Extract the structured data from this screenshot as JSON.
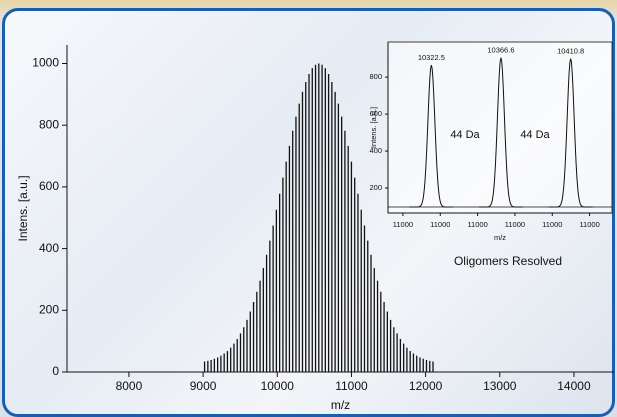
{
  "chart_data": [
    {
      "type": "stem",
      "x_label": "m/z",
      "y_label": "Intens. [a.u.]",
      "color": "#111111",
      "x": [
        9020,
        9064,
        9108,
        9152,
        9196,
        9240,
        9284,
        9328,
        9372,
        9416,
        9460,
        9504,
        9548,
        9592,
        9636,
        9680,
        9724,
        9768,
        9812,
        9856,
        9900,
        9944,
        9988,
        10032,
        10076,
        10120,
        10164,
        10208,
        10252,
        10296,
        10340,
        10384,
        10428,
        10472,
        10516,
        10560,
        10604,
        10648,
        10692,
        10736,
        10780,
        10824,
        10868,
        10912,
        10956,
        11000,
        11044,
        11088,
        11132,
        11176,
        11220,
        11264,
        11308,
        11352,
        11396,
        11440,
        11484,
        11528,
        11572,
        11616,
        11660,
        11704,
        11748,
        11792,
        11836,
        11880,
        11924,
        11968,
        12012,
        12056,
        12100
      ],
      "values": [
        34,
        36,
        39,
        43,
        47,
        53,
        60,
        68,
        79,
        92,
        107,
        125,
        145,
        169,
        196,
        227,
        260,
        296,
        337,
        380,
        426,
        475,
        526,
        578,
        630,
        682,
        733,
        782,
        828,
        870,
        908,
        940,
        966,
        985,
        996,
        1000,
        996,
        985,
        966,
        940,
        908,
        870,
        828,
        782,
        733,
        682,
        630,
        578,
        526,
        475,
        426,
        380,
        337,
        296,
        260,
        227,
        196,
        169,
        145,
        125,
        107,
        92,
        79,
        68,
        60,
        53,
        47,
        43,
        39,
        36,
        34
      ],
      "xlim": [
        7165,
        14540
      ],
      "xticks": [
        8000,
        9000,
        10000,
        11000,
        12000,
        13000,
        14000
      ],
      "ylim": [
        0,
        1060
      ],
      "yticks": [
        0,
        200,
        400,
        600,
        800,
        1000
      ]
    },
    {
      "type": "peaks",
      "x_label": "m/z",
      "y_label": "Intens. [a.u.]",
      "color": "#111111",
      "x": [
        10322.5,
        10366.6,
        10410.8
      ],
      "values": [
        865,
        905,
        900
      ],
      "xlim": [
        10295,
        10437
      ],
      "x_tick_labels": [
        "11000",
        "11000",
        "11000",
        "11000",
        "11000",
        "11000"
      ],
      "ylim": [
        65,
        990
      ],
      "yticks": [
        200,
        400,
        600,
        800
      ],
      "annotations": [
        "44 Da",
        "44 Da",
        "Oligomers Resolved"
      ]
    }
  ]
}
